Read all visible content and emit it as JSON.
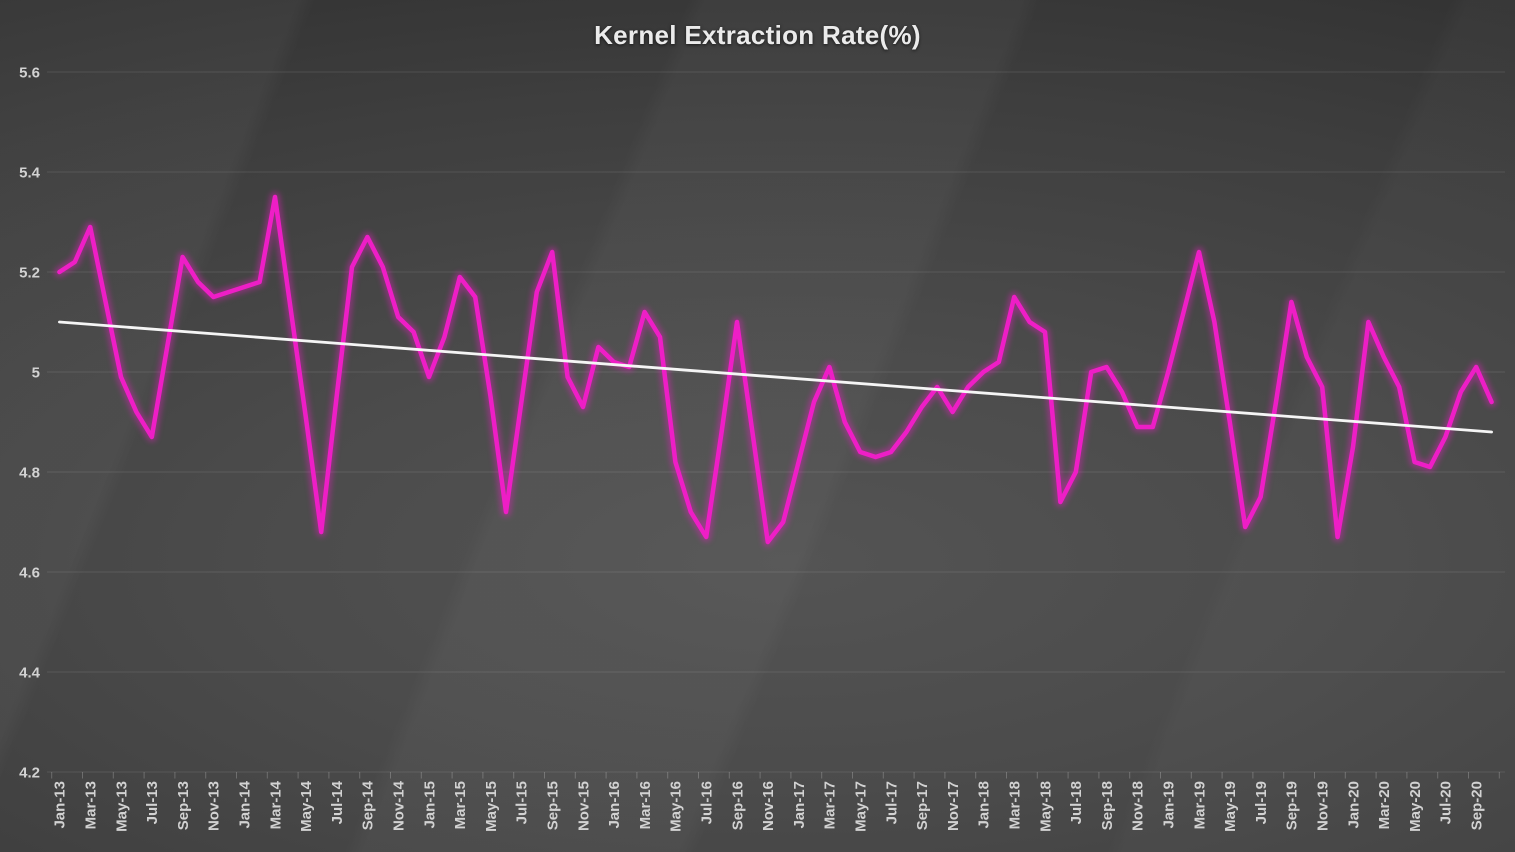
{
  "title": "Kernel Extraction Rate(%)",
  "colors": {
    "background": "#3e3e3e",
    "series": "#ee1ec6",
    "trendline": "#f5f5f5",
    "gridline": "#555555",
    "axis_text": "#d2d2d2",
    "title_text": "#ebebeb"
  },
  "chart_data": {
    "type": "line",
    "title": "Kernel Extraction Rate(%)",
    "xlabel": "",
    "ylabel": "",
    "ylim": [
      4.2,
      5.6
    ],
    "grid": "horizontal",
    "legend_position": "none",
    "ytick_values": [
      5.6,
      5.4,
      5.2,
      5.0,
      4.8,
      4.6,
      4.4,
      4.2
    ],
    "ytick_labels": [
      "5.6",
      "5.4",
      "5.2",
      "5",
      "4.8",
      "4.6",
      "4.4",
      "4.2"
    ],
    "xtick_labels_shown": [
      "Jan-13",
      "Mar-13",
      "May-13",
      "Jul-13",
      "Sep-13",
      "Nov-13",
      "Jan-14",
      "Mar-14",
      "May-14",
      "Jul-14",
      "Sep-14",
      "Nov-14",
      "Jan-15",
      "Mar-15",
      "May-15",
      "Jul-15",
      "Sep-15",
      "Nov-15",
      "Jan-16",
      "Mar-16",
      "May-16",
      "Jul-16",
      "Sep-16",
      "Nov-16",
      "Jan-17",
      "Mar-17",
      "May-17",
      "Jul-17",
      "Sep-17",
      "Nov-17",
      "Jan-18",
      "Mar-18",
      "May-18",
      "Jul-18",
      "Sep-18",
      "Nov-18",
      "Jan-19",
      "Mar-19",
      "May-19",
      "Jul-19",
      "Sep-19",
      "Nov-19",
      "Jan-20",
      "Mar-20",
      "May-20",
      "Jul-20",
      "Sep-20"
    ],
    "xtick_label_rotation_deg": -90,
    "categories": [
      "Jan-13",
      "Feb-13",
      "Mar-13",
      "Apr-13",
      "May-13",
      "Jun-13",
      "Jul-13",
      "Aug-13",
      "Sep-13",
      "Oct-13",
      "Nov-13",
      "Dec-13",
      "Jan-14",
      "Feb-14",
      "Mar-14",
      "Apr-14",
      "May-14",
      "Jun-14",
      "Jul-14",
      "Aug-14",
      "Sep-14",
      "Oct-14",
      "Nov-14",
      "Dec-14",
      "Jan-15",
      "Feb-15",
      "Mar-15",
      "Apr-15",
      "May-15",
      "Jun-15",
      "Jul-15",
      "Aug-15",
      "Sep-15",
      "Oct-15",
      "Nov-15",
      "Dec-15",
      "Jan-16",
      "Feb-16",
      "Mar-16",
      "Apr-16",
      "May-16",
      "Jun-16",
      "Jul-16",
      "Aug-16",
      "Sep-16",
      "Oct-16",
      "Nov-16",
      "Dec-16",
      "Jan-17",
      "Feb-17",
      "Mar-17",
      "Apr-17",
      "May-17",
      "Jun-17",
      "Jul-17",
      "Aug-17",
      "Sep-17",
      "Oct-17",
      "Nov-17",
      "Dec-17",
      "Jan-18",
      "Feb-18",
      "Mar-18",
      "Apr-18",
      "May-18",
      "Jun-18",
      "Jul-18",
      "Aug-18",
      "Sep-18",
      "Oct-18",
      "Nov-18",
      "Dec-18",
      "Jan-19",
      "Feb-19",
      "Mar-19",
      "Apr-19",
      "May-19",
      "Jun-19",
      "Jul-19",
      "Aug-19",
      "Sep-19",
      "Oct-19",
      "Nov-19",
      "Dec-19",
      "Jan-20",
      "Feb-20",
      "Mar-20",
      "Apr-20",
      "May-20",
      "Jun-20",
      "Jul-20",
      "Aug-20",
      "Sep-20",
      "Oct-20"
    ],
    "series": [
      {
        "name": "Kernel Extraction Rate (%)",
        "color": "#ee1ec6",
        "values": [
          5.2,
          5.22,
          5.29,
          5.14,
          4.99,
          4.92,
          4.87,
          5.05,
          5.23,
          5.18,
          5.15,
          5.16,
          5.17,
          5.18,
          5.35,
          5.13,
          4.91,
          4.68,
          4.95,
          5.21,
          5.27,
          5.21,
          5.11,
          5.08,
          4.99,
          5.07,
          5.19,
          5.15,
          4.95,
          4.72,
          4.94,
          5.16,
          5.24,
          4.99,
          4.93,
          5.05,
          5.02,
          5.01,
          5.12,
          5.07,
          4.82,
          4.72,
          4.67,
          4.88,
          5.1,
          4.88,
          4.66,
          4.7,
          4.82,
          4.94,
          5.01,
          4.9,
          4.84,
          4.83,
          4.84,
          4.88,
          4.93,
          4.97,
          4.92,
          4.97,
          5.0,
          5.02,
          5.15,
          5.1,
          5.08,
          4.74,
          4.8,
          5.0,
          5.01,
          4.96,
          4.89,
          4.89,
          5.0,
          5.12,
          5.24,
          5.1,
          4.9,
          4.69,
          4.75,
          4.94,
          5.14,
          5.03,
          4.97,
          4.67,
          4.85,
          5.1,
          5.03,
          4.97,
          4.82,
          4.81,
          4.87,
          4.96,
          5.01,
          4.94
        ]
      }
    ],
    "trendline": {
      "name": "Linear trend",
      "color": "#f5f5f5",
      "start_value": 5.1,
      "end_value": 4.88
    }
  }
}
